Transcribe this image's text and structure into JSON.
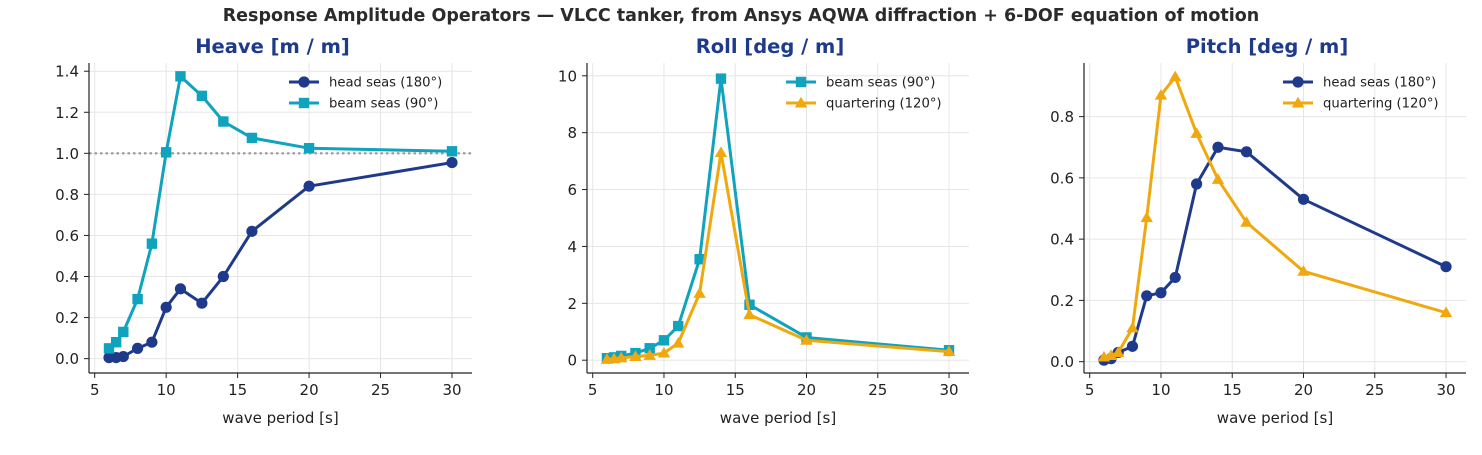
{
  "figure": {
    "title": "Response Amplitude Operators — VLCC tanker, from Ansys AQWA diffraction + 6-DOF equation of motion"
  },
  "colors": {
    "title": "#1f3a8a",
    "head": "#1f3a8a",
    "beam": "#0fa3bd",
    "quartering": "#f0a80f",
    "reference_line": "#999999",
    "grid": "#e6e6e6"
  },
  "chart_data": [
    {
      "type": "line",
      "title": "Heave  [m / m]",
      "xlabel": "wave period  [s]",
      "ylabel": "",
      "xlim": [
        4.6,
        31.4
      ],
      "ylim": [
        -0.07,
        1.44
      ],
      "xticks": [
        5,
        10,
        15,
        20,
        25,
        30
      ],
      "yticks": [
        0.0,
        0.2,
        0.4,
        0.6,
        0.8,
        1.0,
        1.2,
        1.4
      ],
      "tick_decimals": 1,
      "grid": true,
      "legend_position": "top-right",
      "reference_line": 1.0,
      "series": [
        {
          "name": "head seas (180°)",
          "marker": "circle",
          "color_key": "head",
          "x": [
            6,
            6.5,
            7,
            8,
            9,
            10,
            11,
            12.5,
            14,
            16,
            20,
            30
          ],
          "y": [
            0.005,
            0.005,
            0.01,
            0.05,
            0.08,
            0.25,
            0.34,
            0.27,
            0.4,
            0.62,
            0.84,
            0.955
          ]
        },
        {
          "name": "beam seas (90°)",
          "marker": "square",
          "color_key": "beam",
          "x": [
            6,
            6.5,
            7,
            8,
            9,
            10,
            11,
            12.5,
            14,
            16,
            20,
            30
          ],
          "y": [
            0.05,
            0.08,
            0.13,
            0.29,
            0.56,
            1.005,
            1.375,
            1.28,
            1.155,
            1.075,
            1.025,
            1.01
          ]
        }
      ]
    },
    {
      "type": "line",
      "title": "Roll  [deg / m]",
      "xlabel": "wave period  [s]",
      "ylabel": "",
      "xlim": [
        4.6,
        31.4
      ],
      "ylim": [
        -0.45,
        10.45
      ],
      "xticks": [
        5,
        10,
        15,
        20,
        25,
        30
      ],
      "yticks": [
        0,
        2,
        4,
        6,
        8,
        10
      ],
      "tick_decimals": 0,
      "grid": true,
      "legend_position": "top-right",
      "series": [
        {
          "name": "beam seas (90°)",
          "marker": "square",
          "color_key": "beam",
          "x": [
            6,
            6.5,
            7,
            8,
            9,
            10,
            11,
            12.5,
            14,
            16,
            20,
            30
          ],
          "y": [
            0.07,
            0.1,
            0.15,
            0.25,
            0.42,
            0.7,
            1.2,
            3.55,
            9.9,
            1.95,
            0.8,
            0.35
          ]
        },
        {
          "name": "quartering (120°)",
          "marker": "triangle",
          "color_key": "quartering",
          "x": [
            6,
            6.5,
            7,
            8,
            9,
            10,
            11,
            12.5,
            14,
            16,
            20,
            30
          ],
          "y": [
            0.03,
            0.05,
            0.08,
            0.13,
            0.17,
            0.25,
            0.6,
            2.35,
            7.3,
            1.6,
            0.7,
            0.3
          ]
        }
      ]
    },
    {
      "type": "line",
      "title": "Pitch  [deg / m]",
      "xlabel": "wave period  [s]",
      "ylabel": "",
      "xlim": [
        4.6,
        31.4
      ],
      "ylim": [
        -0.037,
        0.975
      ],
      "xticks": [
        5,
        10,
        15,
        20,
        25,
        30
      ],
      "yticks": [
        0.0,
        0.2,
        0.4,
        0.6,
        0.8
      ],
      "tick_decimals": 1,
      "grid": true,
      "legend_position": "top-right",
      "series": [
        {
          "name": "head seas (180°)",
          "marker": "circle",
          "color_key": "head",
          "x": [
            6,
            6.5,
            7,
            8,
            9,
            10,
            11,
            12.5,
            14,
            16,
            20,
            30
          ],
          "y": [
            0.005,
            0.01,
            0.03,
            0.05,
            0.215,
            0.225,
            0.275,
            0.58,
            0.7,
            0.685,
            0.53,
            0.31
          ]
        },
        {
          "name": "quartering (120°)",
          "marker": "triangle",
          "color_key": "quartering",
          "x": [
            6,
            6.5,
            7,
            8,
            9,
            10,
            11,
            12.5,
            14,
            16,
            20,
            30
          ],
          "y": [
            0.015,
            0.02,
            0.03,
            0.11,
            0.47,
            0.87,
            0.93,
            0.745,
            0.595,
            0.455,
            0.295,
            0.16
          ]
        }
      ]
    }
  ]
}
